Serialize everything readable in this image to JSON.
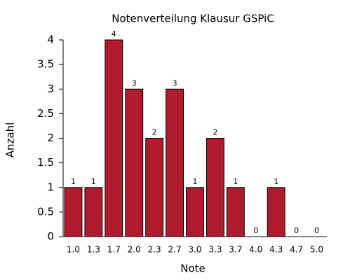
{
  "chart_data": {
    "type": "bar",
    "title": "Notenverteilung Klausur GSPiC",
    "x_label": "Note",
    "y_label": "Anzahl",
    "categories": [
      "1.0",
      "1.3",
      "1.7",
      "2.0",
      "2.3",
      "2.7",
      "3.0",
      "3.3",
      "3.7",
      "4.0",
      "4.3",
      "4.7",
      "5.0"
    ],
    "values": [
      1,
      1,
      4,
      3,
      2,
      3,
      1,
      2,
      1,
      0,
      1,
      0,
      0
    ],
    "color": "#b01b2e",
    "ylim": [
      0,
      4
    ],
    "yticks": [
      0,
      0.5,
      1,
      1.5,
      2,
      2.5,
      3,
      3.5,
      4
    ],
    "grid": false
  }
}
